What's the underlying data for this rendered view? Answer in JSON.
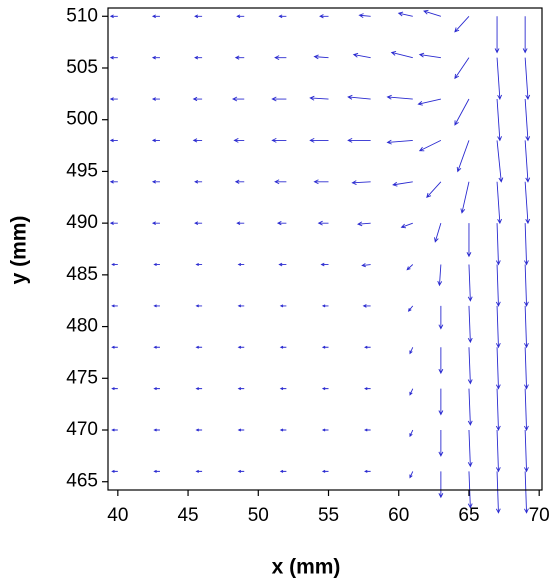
{
  "chart_data": {
    "type": "quiver",
    "xlabel": "x (mm)",
    "ylabel": "y (mm)",
    "color": "#2a2ad0",
    "xlim": [
      39.3,
      70.2
    ],
    "ylim": [
      464.2,
      510.8
    ],
    "xticks": [
      40,
      45,
      50,
      55,
      60,
      65,
      70
    ],
    "yticks": [
      465,
      470,
      475,
      480,
      485,
      490,
      495,
      500,
      505,
      510
    ],
    "x": [
      40,
      43,
      46,
      49,
      52,
      55,
      58,
      61,
      63,
      65,
      67,
      69
    ],
    "y": [
      466,
      470,
      474,
      478,
      482,
      486,
      490,
      494,
      498,
      502,
      506,
      510
    ],
    "u": [
      [
        -0.4,
        -0.4,
        -0.4,
        -0.4,
        -0.4,
        -0.4,
        -0.4,
        -0.2,
        0,
        0.1,
        0.1,
        0.1
      ],
      [
        -0.4,
        -0.4,
        -0.4,
        -0.4,
        -0.4,
        -0.4,
        -0.4,
        -0.2,
        0,
        0.1,
        0.1,
        0.1
      ],
      [
        -0.4,
        -0.4,
        -0.4,
        -0.4,
        -0.4,
        -0.4,
        -0.4,
        -0.2,
        0,
        0.1,
        0.1,
        0.1
      ],
      [
        -0.4,
        -0.4,
        -0.4,
        -0.4,
        -0.4,
        -0.4,
        -0.4,
        -0.2,
        0,
        0.1,
        0.1,
        0.1
      ],
      [
        -0.4,
        -0.4,
        -0.4,
        -0.4,
        -0.4,
        -0.4,
        -0.5,
        -0.3,
        0,
        0.1,
        0.1,
        0.1
      ],
      [
        -0.4,
        -0.4,
        -0.4,
        -0.4,
        -0.5,
        -0.5,
        -0.6,
        -0.4,
        -0.1,
        0.1,
        0.1,
        0.1
      ],
      [
        -0.5,
        -0.5,
        -0.5,
        -0.5,
        -0.6,
        -0.7,
        -0.9,
        -0.8,
        -0.4,
        0,
        0.1,
        0.1
      ],
      [
        -0.5,
        -0.5,
        -0.5,
        -0.6,
        -0.8,
        -1,
        -1.3,
        -1.4,
        -1,
        -0.5,
        0.2,
        0.2
      ],
      [
        -0.5,
        -0.5,
        -0.6,
        -0.7,
        -1,
        -1.3,
        -1.6,
        -1.8,
        -1.5,
        -0.8,
        0.3,
        0.2
      ],
      [
        -0.5,
        -0.5,
        -0.6,
        -0.8,
        -1,
        -1.3,
        -1.6,
        -1.8,
        -1.6,
        -1,
        0.2,
        0.2
      ],
      [
        -0.5,
        -0.5,
        -0.5,
        -0.6,
        -0.8,
        -1,
        -1.2,
        -1.5,
        -1.5,
        -1,
        0.2,
        0.2
      ],
      [
        -0.5,
        -0.5,
        -0.5,
        -0.5,
        -0.5,
        -0.6,
        -0.8,
        -1,
        -1.2,
        -1,
        0,
        0
      ]
    ],
    "v": [
      [
        0,
        0,
        0,
        0,
        0,
        0,
        0,
        -0.6,
        -2.5,
        -3.5,
        -4,
        -4
      ],
      [
        0,
        0,
        0,
        0,
        0,
        0,
        0,
        -0.6,
        -2.5,
        -3.5,
        -4,
        -4
      ],
      [
        0,
        0,
        0,
        0,
        0,
        0,
        0,
        -0.6,
        -2.5,
        -3.5,
        -4,
        -4
      ],
      [
        0,
        0,
        0,
        0,
        0,
        0,
        0,
        -0.6,
        -2.5,
        -3.5,
        -4,
        -4
      ],
      [
        0,
        0,
        0,
        0,
        0,
        0,
        0,
        -0.5,
        -2.2,
        -3.5,
        -4,
        -4
      ],
      [
        0,
        0,
        0,
        0,
        0,
        0,
        -0.1,
        -0.5,
        -2,
        -3.5,
        -4,
        -4
      ],
      [
        0,
        0,
        0,
        0,
        0,
        0,
        -0.1,
        -0.4,
        -1.8,
        -3.2,
        -4,
        -4
      ],
      [
        0,
        0,
        0,
        0,
        0,
        0,
        -0.1,
        -0.3,
        -1.5,
        -3,
        -4,
        -4
      ],
      [
        0,
        0,
        0,
        0,
        0,
        0,
        0,
        -0.2,
        -1,
        -3,
        -4,
        -4
      ],
      [
        0,
        0,
        0,
        0,
        0,
        0.1,
        0.2,
        0.2,
        -0.5,
        -2.5,
        -4,
        -4
      ],
      [
        0,
        0,
        0,
        0,
        0,
        0.1,
        0.3,
        0.5,
        0.3,
        -2,
        -4,
        -4
      ],
      [
        0,
        0,
        0,
        0,
        0,
        0,
        0.1,
        0.3,
        0.5,
        -1.5,
        -3.5,
        -3.5
      ]
    ]
  }
}
